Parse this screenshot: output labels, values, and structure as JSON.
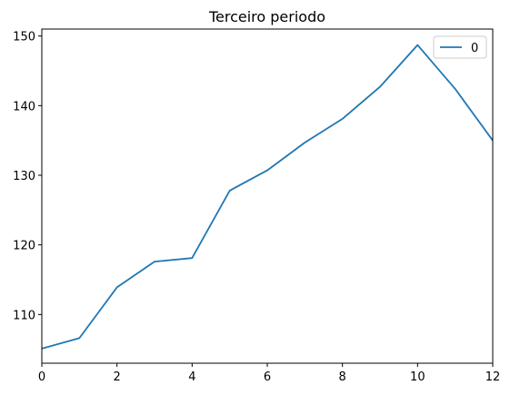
{
  "chart_data": {
    "type": "line",
    "title": "Terceiro periodo",
    "xlabel": "",
    "ylabel": "",
    "xlim": [
      0,
      12
    ],
    "ylim": [
      103,
      151
    ],
    "xticks": [
      0,
      2,
      4,
      6,
      8,
      10,
      12
    ],
    "yticks": [
      110,
      120,
      130,
      140,
      150
    ],
    "grid": false,
    "legend_position": "top-right",
    "series": [
      {
        "name": "0",
        "color": "#1f77b4",
        "x": [
          0,
          1,
          2,
          3,
          4,
          5,
          6,
          7,
          8,
          9,
          10,
          11,
          12
        ],
        "y": [
          105.1,
          106.6,
          113.9,
          117.6,
          118.1,
          127.8,
          130.7,
          134.7,
          138.1,
          142.7,
          148.7,
          142.4,
          135.0
        ]
      }
    ]
  }
}
